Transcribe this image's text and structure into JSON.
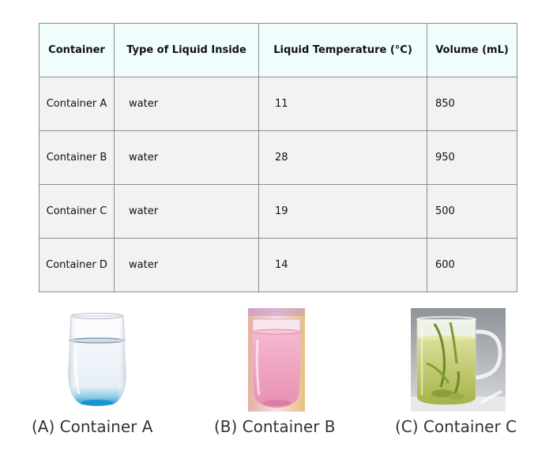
{
  "table": {
    "headers": [
      "Container",
      "Type of Liquid Inside",
      "Liquid Temperature (°C)",
      "Volume (mL)"
    ],
    "rows": [
      {
        "container": "Container A",
        "liquid": "water",
        "temperature": "11",
        "volume": "850"
      },
      {
        "container": "Container B",
        "liquid": "water",
        "temperature": "28",
        "volume": "950"
      },
      {
        "container": "Container C",
        "liquid": "water",
        "temperature": "19",
        "volume": "500"
      },
      {
        "container": "Container D",
        "liquid": "water",
        "temperature": "14",
        "volume": "600"
      }
    ]
  },
  "images": [
    {
      "caption": "(A) Container A"
    },
    {
      "caption": "(B) Container B"
    },
    {
      "caption": "(C) Container C"
    }
  ]
}
